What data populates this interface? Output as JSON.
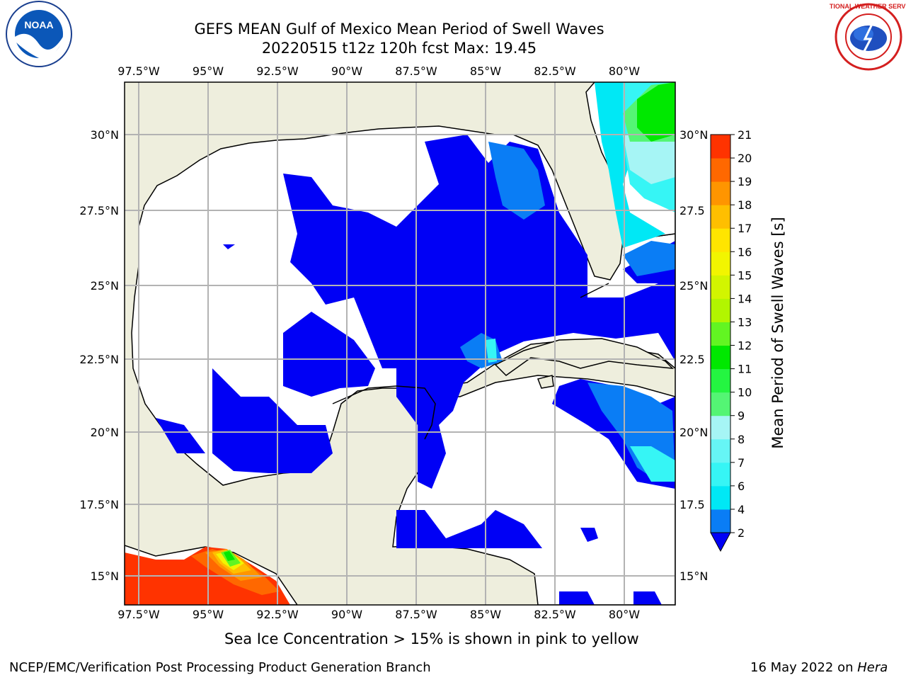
{
  "title_line1": "GEFS MEAN Gulf of Mexico Mean Period of Swell Waves",
  "title_line2": "20220515 t12z 120h fcst   Max: 19.45",
  "map": {
    "lon_ticks": [
      "97.5°W",
      "95°W",
      "92.5°W",
      "90°W",
      "87.5°W",
      "85°W",
      "82.5°W",
      "80°W"
    ],
    "lat_ticks_left": [
      "30°N",
      "27.5°N",
      "25°N",
      "22.5°N",
      "20°N",
      "17.5°N",
      "15°N"
    ],
    "lat_ticks_right": [
      "30°N",
      "27.5",
      "25°N",
      "22.5",
      "20°N",
      "17.5",
      "15°N"
    ],
    "land_color": "#eeeedd",
    "ocean_color": "#ffffff",
    "grid_color": "#b3b3b3"
  },
  "colorbar": {
    "label": "Mean Period of Swell Waves [s]",
    "ticks": [
      "2",
      "4",
      "6",
      "7",
      "8",
      "9",
      "10",
      "11",
      "12",
      "13",
      "14",
      "15",
      "16",
      "17",
      "18",
      "19",
      "20",
      "21"
    ],
    "colors": [
      "#0a7df5",
      "#00e8f5",
      "#36f5f5",
      "#66f5f5",
      "#a6f5f5",
      "#54f574",
      "#24f541",
      "#00e800",
      "#62f522",
      "#b2f500",
      "#d2f500",
      "#f2f500",
      "#ffe500",
      "#ffbf00",
      "#ff9500",
      "#ff6800",
      "#ff3300"
    ],
    "extend_color": "#0000f5"
  },
  "note": "Sea Ice Concentration > 15% is shown in pink to yellow",
  "footer_left": "NCEP/EMC/Verification Post Processing Product Generation Branch",
  "footer_date": "16 May 2022 on",
  "footer_machine": "Hera",
  "logos": {
    "noaa_text": "NOAA",
    "nws_text": "NATIONAL WEATHER SERVICE"
  }
}
